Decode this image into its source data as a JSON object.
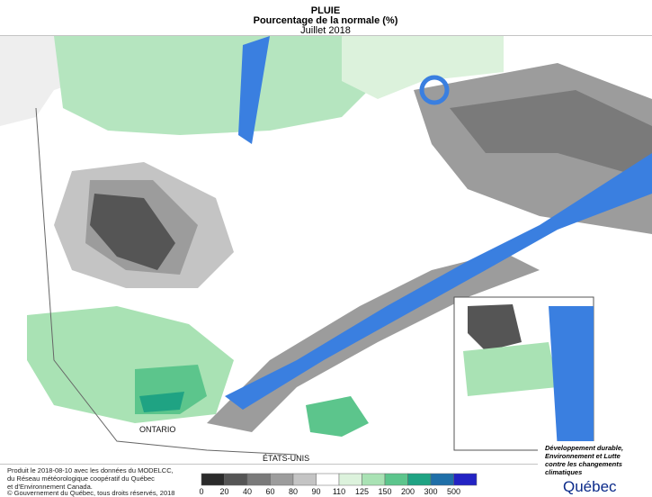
{
  "header": {
    "title": "PLUIE",
    "subtitle": "Pourcentage de la normale (%)",
    "period": "Juillet 2018"
  },
  "map_labels": {
    "ontario": "ONTARIO",
    "usa": "ÉTATS-UNIS"
  },
  "legend": {
    "ticks": [
      0,
      20,
      40,
      60,
      80,
      90,
      110,
      125,
      150,
      200,
      300,
      500
    ],
    "colors": [
      "#2b2b2b",
      "#555555",
      "#7a7a7a",
      "#9c9c9c",
      "#c4c4c4",
      "#ffffff",
      "#dcf2dc",
      "#a9e2b4",
      "#5cc58c",
      "#1fa383",
      "#1f6fa8",
      "#2323c4"
    ]
  },
  "credits": {
    "production": [
      "Produit le 2018-08-10 avec les données du MODELCC,",
      "du Réseau météorologique coopératif du Québec",
      "et d'Environnement Canada."
    ],
    "copyright": "© Gouvernement du Québec, tous droits réservés, 2018"
  },
  "logo": {
    "ministry": [
      "Développement durable,",
      "Environnement et Lutte",
      "contre les changements",
      "climatiques"
    ],
    "name": "Québec"
  }
}
